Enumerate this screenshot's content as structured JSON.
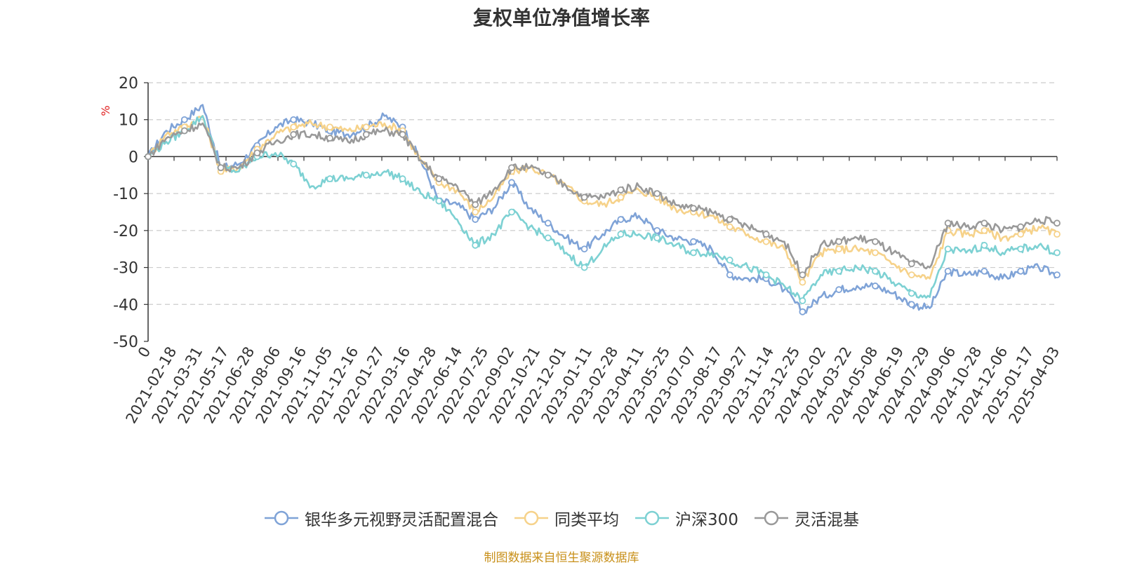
{
  "chart_data": {
    "type": "line",
    "title": "复权单位净值增长率",
    "ylabel": "%",
    "ylim": [
      -50,
      20
    ],
    "yticks": [
      20,
      10,
      0,
      -10,
      -20,
      -30,
      -40,
      -50
    ],
    "x_tick_labels": [
      "0",
      "2021-02-18",
      "2021-03-31",
      "2021-05-17",
      "2021-06-28",
      "2021-08-06",
      "2021-09-16",
      "2021-11-05",
      "2021-12-16",
      "2022-01-27",
      "2022-03-16",
      "2022-04-28",
      "2022-06-14",
      "2022-07-25",
      "2022-09-02",
      "2022-10-21",
      "2022-12-01",
      "2023-01-11",
      "2023-02-28",
      "2023-04-11",
      "2023-05-25",
      "2023-07-07",
      "2023-08-17",
      "2023-09-27",
      "2023-11-14",
      "2023-12-25",
      "2024-02-02",
      "2024-03-22",
      "2024-05-08",
      "2024-06-19",
      "2024-07-29",
      "2024-09-06",
      "2024-10-28",
      "2024-12-06",
      "2025-01-17",
      "2025-04-03"
    ],
    "grid": "dashed horizontal",
    "legend_position": "bottom",
    "series": [
      {
        "name": "银华多元视野灵活配置混合",
        "color": "#7fa3d7",
        "values": [
          0,
          7,
          10,
          14,
          -3,
          -2,
          3,
          8,
          10,
          9,
          7,
          6,
          8,
          11,
          8,
          -1,
          -12,
          -13,
          -17,
          -14,
          -7,
          -14,
          -18,
          -22,
          -25,
          -21,
          -17,
          -16,
          -20,
          -22,
          -23,
          -25,
          -32,
          -33,
          -33,
          -36,
          -42,
          -38,
          -36,
          -35,
          -35,
          -37,
          -40,
          -41,
          -31,
          -32,
          -31,
          -33,
          -31,
          -30,
          -32
        ]
      },
      {
        "name": "同类平均",
        "color": "#f6d28a",
        "values": [
          0,
          6,
          8,
          11,
          -4,
          -3,
          2,
          6,
          8,
          9,
          8,
          7,
          8,
          9,
          7,
          -1,
          -7,
          -9,
          -15,
          -11,
          -4,
          -3,
          -5,
          -8,
          -12,
          -13,
          -11,
          -9,
          -11,
          -14,
          -15,
          -16,
          -19,
          -21,
          -23,
          -25,
          -34,
          -26,
          -25,
          -25,
          -26,
          -29,
          -32,
          -33,
          -20,
          -21,
          -20,
          -22,
          -21,
          -19,
          -21
        ]
      },
      {
        "name": "沪深300",
        "color": "#7dd1d3",
        "values": [
          0,
          4,
          7,
          11,
          -3,
          -4,
          0,
          1,
          -2,
          -8,
          -6,
          -6,
          -5,
          -4,
          -6,
          -10,
          -12,
          -17,
          -24,
          -21,
          -15,
          -19,
          -22,
          -26,
          -30,
          -25,
          -21,
          -21,
          -22,
          -24,
          -26,
          -26,
          -28,
          -30,
          -32,
          -35,
          -39,
          -32,
          -31,
          -30,
          -31,
          -34,
          -37,
          -38,
          -25,
          -26,
          -24,
          -26,
          -25,
          -24,
          -26
        ]
      },
      {
        "name": "灵活混基",
        "color": "#999999",
        "values": [
          0,
          5,
          7,
          9,
          -3,
          -3,
          1,
          4,
          6,
          6,
          5,
          4,
          6,
          7,
          6,
          -1,
          -6,
          -8,
          -13,
          -9,
          -3,
          -3,
          -5,
          -8,
          -11,
          -11,
          -9,
          -8,
          -10,
          -13,
          -14,
          -15,
          -17,
          -19,
          -21,
          -23,
          -32,
          -24,
          -23,
          -22,
          -23,
          -26,
          -29,
          -30,
          -18,
          -19,
          -18,
          -20,
          -19,
          -17,
          -18
        ]
      }
    ]
  },
  "source_note": "制图数据来自恒生聚源数据库"
}
